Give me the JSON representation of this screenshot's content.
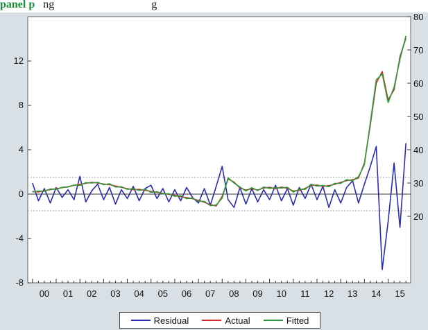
{
  "caption": {
    "lead": "panel p",
    "rest": "   ng                                   g"
  },
  "chart_data": {
    "type": "line",
    "x_tick_labels": [
      "00",
      "01",
      "02",
      "03",
      "04",
      "05",
      "06",
      "07",
      "08",
      "09",
      "10",
      "11",
      "12",
      "13",
      "14",
      "15"
    ],
    "left_axis": {
      "range": [
        -8,
        16
      ],
      "ticks": [
        -8,
        -4,
        0,
        4,
        8,
        12
      ]
    },
    "right_axis": {
      "range": [
        0,
        80
      ],
      "ticks": [
        20,
        30,
        40,
        50,
        60,
        70,
        80
      ]
    },
    "residual_bands": [
      -1.5,
      1.5
    ],
    "grid": false,
    "legend_position": "bottom-center",
    "x": [
      2000.0,
      2000.25,
      2000.5,
      2000.75,
      2001.0,
      2001.25,
      2001.5,
      2001.75,
      2002.0,
      2002.25,
      2002.5,
      2002.75,
      2003.0,
      2003.25,
      2003.5,
      2003.75,
      2004.0,
      2004.25,
      2004.5,
      2004.75,
      2005.0,
      2005.25,
      2005.5,
      2005.75,
      2006.0,
      2006.25,
      2006.5,
      2006.75,
      2007.0,
      2007.25,
      2007.5,
      2007.75,
      2008.0,
      2008.25,
      2008.5,
      2008.75,
      2009.0,
      2009.25,
      2009.5,
      2009.75,
      2010.0,
      2010.25,
      2010.5,
      2010.75,
      2011.0,
      2011.25,
      2011.5,
      2011.75,
      2012.0,
      2012.25,
      2012.5,
      2012.75,
      2013.0,
      2013.25,
      2013.5,
      2013.75,
      2014.0,
      2014.25,
      2014.5,
      2014.75,
      2015.0,
      2015.25,
      2015.5,
      2015.75
    ],
    "series": [
      {
        "name": "Residual",
        "color": "#2b2bb0",
        "axis": "left",
        "values": [
          1.0,
          -0.6,
          0.5,
          -0.8,
          0.6,
          -0.3,
          0.4,
          -0.5,
          1.6,
          -0.7,
          0.3,
          0.9,
          -0.5,
          0.6,
          -0.9,
          0.4,
          -0.4,
          0.7,
          -0.6,
          0.5,
          0.8,
          -0.4,
          0.5,
          -0.7,
          0.4,
          -0.6,
          0.6,
          -0.3,
          -0.8,
          0.5,
          -1.0,
          0.7,
          2.5,
          -0.5,
          -1.2,
          0.6,
          -0.9,
          0.5,
          -0.7,
          0.4,
          -0.5,
          0.8,
          -0.6,
          0.5,
          -1.0,
          0.6,
          -0.4,
          0.9,
          -0.5,
          0.7,
          -1.2,
          0.4,
          -0.8,
          0.6,
          1.2,
          -0.8,
          0.9,
          2.5,
          4.3,
          -6.8,
          -2.5,
          2.8,
          -3.0,
          4.6
        ]
      },
      {
        "name": "Actual",
        "color": "#d42a2a",
        "axis": "right",
        "values": [
          27.5,
          27.3,
          27.7,
          28.0,
          28.3,
          28.6,
          28.9,
          29.3,
          29.6,
          29.9,
          30.2,
          30.0,
          29.7,
          29.5,
          29.1,
          28.7,
          28.3,
          28.0,
          28.1,
          27.8,
          27.5,
          27.2,
          26.9,
          26.6,
          26.3,
          25.9,
          25.6,
          25.3,
          24.8,
          24.2,
          23.5,
          23.1,
          26.0,
          31.2,
          30.3,
          28.5,
          27.9,
          28.3,
          27.9,
          28.5,
          28.7,
          28.3,
          28.8,
          28.4,
          27.6,
          27.8,
          28.4,
          29.3,
          29.4,
          29.0,
          29.2,
          29.6,
          30.2,
          30.7,
          31.0,
          31.5,
          36.0,
          47.5,
          60.0,
          63.5,
          55.0,
          58.0,
          68.0,
          73.5
        ]
      },
      {
        "name": "Fitted",
        "color": "#2a9a3a",
        "axis": "right",
        "values": [
          27.3,
          27.6,
          27.5,
          28.2,
          28.1,
          28.7,
          28.8,
          29.4,
          29.3,
          30.1,
          30.0,
          30.2,
          29.5,
          29.8,
          28.8,
          28.9,
          28.1,
          28.3,
          27.8,
          28.1,
          27.2,
          27.4,
          26.7,
          26.8,
          26.0,
          26.2,
          25.3,
          25.5,
          24.5,
          24.5,
          23.2,
          23.4,
          25.5,
          31.6,
          30.0,
          28.8,
          27.6,
          28.6,
          27.7,
          28.8,
          28.4,
          28.6,
          28.5,
          28.7,
          27.3,
          28.1,
          28.1,
          29.6,
          29.1,
          29.3,
          28.9,
          29.9,
          29.9,
          31.0,
          30.7,
          31.9,
          35.5,
          48.2,
          61.0,
          62.8,
          54.2,
          58.8,
          67.2,
          74.2
        ]
      }
    ]
  }
}
